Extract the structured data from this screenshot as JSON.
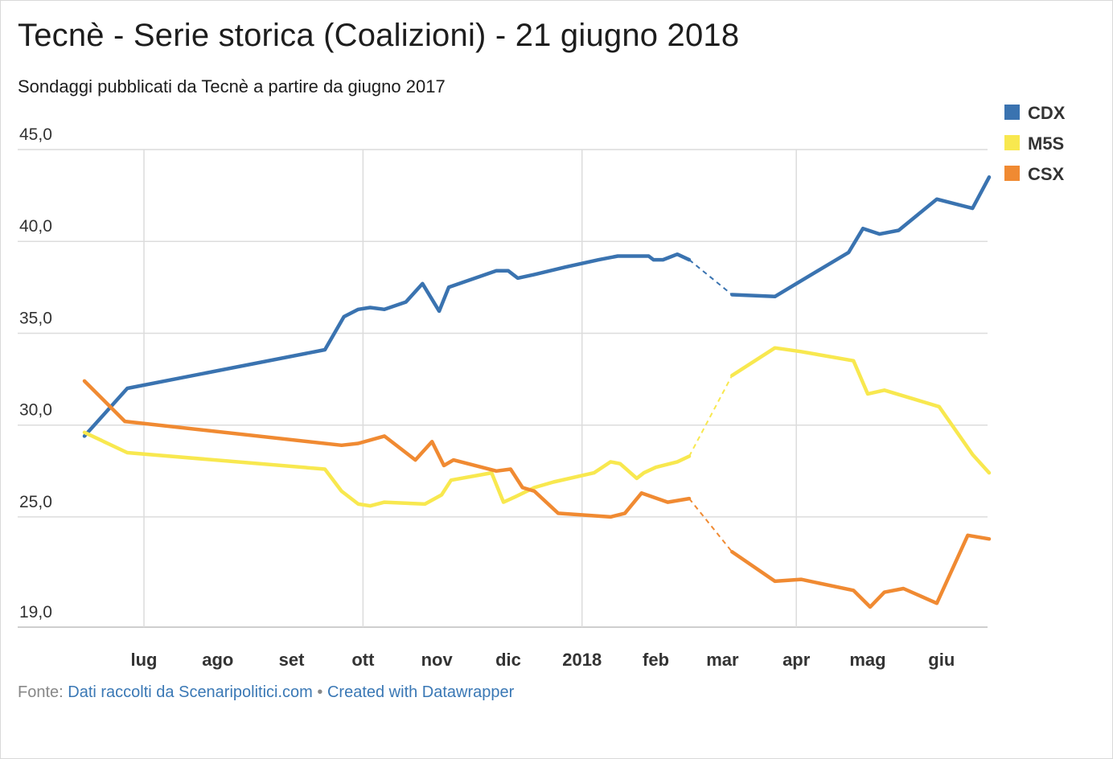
{
  "title": "Tecnè - Serie storica (Coalizioni) - 21 giugno 2018",
  "subtitle": "Sondaggi pubblicati da Tecnè a partire da giugno 2017",
  "footer": {
    "source_label": "Fonte:",
    "source_link": "Dati raccolti da Scenaripolitici.com",
    "separator": "•",
    "credit_link": "Created with Datawrapper"
  },
  "chart_data": {
    "type": "line",
    "title": "Tecnè - Serie storica (Coalizioni) - 21 giugno 2018",
    "subtitle": "Sondaggi pubblicati da Tecnè a partire da giugno 2017",
    "xlabel": "",
    "ylabel": "",
    "xlim": [
      "2017-06-06",
      "2018-06-21"
    ],
    "ylim": [
      19.0,
      45.0
    ],
    "yticks": [
      19.0,
      25.0,
      30.0,
      35.0,
      40.0,
      45.0
    ],
    "ytick_labels": [
      "19,0",
      "25,0",
      "30,0",
      "35,0",
      "40,0",
      "45,0"
    ],
    "xticks": [
      {
        "date": "2017-07-01",
        "label": "lug",
        "grid": true
      },
      {
        "date": "2017-08-01",
        "label": "ago",
        "grid": false
      },
      {
        "date": "2017-09-01",
        "label": "set",
        "grid": false
      },
      {
        "date": "2017-10-01",
        "label": "ott",
        "grid": true
      },
      {
        "date": "2017-11-01",
        "label": "nov",
        "grid": false
      },
      {
        "date": "2017-12-01",
        "label": "dic",
        "grid": false
      },
      {
        "date": "2018-01-01",
        "label": "2018",
        "grid": true
      },
      {
        "date": "2018-02-01",
        "label": "feb",
        "grid": false
      },
      {
        "date": "2018-03-01",
        "label": "mar",
        "grid": false
      },
      {
        "date": "2018-04-01",
        "label": "apr",
        "grid": true
      },
      {
        "date": "2018-05-01",
        "label": "mag",
        "grid": false
      },
      {
        "date": "2018-06-01",
        "label": "giu",
        "grid": false
      }
    ],
    "gap": {
      "from": "2018-02-15",
      "to": "2018-03-05",
      "style": "dashed"
    },
    "legend": {
      "placement": "top-right"
    },
    "grid": true,
    "series": [
      {
        "name": "CDX",
        "color": "#3a73b0",
        "points": [
          [
            "2017-06-06",
            29.4
          ],
          [
            "2017-06-24",
            32.0
          ],
          [
            "2017-09-15",
            34.1
          ],
          [
            "2017-09-23",
            35.9
          ],
          [
            "2017-09-29",
            36.3
          ],
          [
            "2017-10-04",
            36.4
          ],
          [
            "2017-10-10",
            36.3
          ],
          [
            "2017-10-19",
            36.7
          ],
          [
            "2017-10-26",
            37.7
          ],
          [
            "2017-11-02",
            36.2
          ],
          [
            "2017-11-06",
            37.5
          ],
          [
            "2017-11-26",
            38.4
          ],
          [
            "2017-12-01",
            38.4
          ],
          [
            "2017-12-05",
            38.0
          ],
          [
            "2017-12-12",
            38.2
          ],
          [
            "2017-12-25",
            38.6
          ],
          [
            "2018-01-08",
            39.0
          ],
          [
            "2018-01-16",
            39.2
          ],
          [
            "2018-01-29",
            39.2
          ],
          [
            "2018-01-31",
            39.0
          ],
          [
            "2018-02-04",
            39.0
          ],
          [
            "2018-02-08",
            39.2
          ],
          [
            "2018-02-10",
            39.3
          ],
          [
            "2018-02-15",
            39.0
          ],
          [
            "2018-03-05",
            37.1
          ],
          [
            "2018-03-23",
            37.0
          ],
          [
            "2018-04-01",
            37.7
          ],
          [
            "2018-04-23",
            39.4
          ],
          [
            "2018-04-29",
            40.7
          ],
          [
            "2018-05-06",
            40.4
          ],
          [
            "2018-05-14",
            40.6
          ],
          [
            "2018-05-30",
            42.3
          ],
          [
            "2018-06-14",
            41.8
          ],
          [
            "2018-06-21",
            43.5
          ]
        ]
      },
      {
        "name": "M5S",
        "color": "#f8e84f",
        "points": [
          [
            "2017-06-06",
            29.6
          ],
          [
            "2017-06-24",
            28.5
          ],
          [
            "2017-09-15",
            27.6
          ],
          [
            "2017-09-22",
            26.4
          ],
          [
            "2017-09-29",
            25.7
          ],
          [
            "2017-10-04",
            25.6
          ],
          [
            "2017-10-10",
            25.8
          ],
          [
            "2017-10-27",
            25.7
          ],
          [
            "2017-11-03",
            26.2
          ],
          [
            "2017-11-07",
            27.0
          ],
          [
            "2017-11-24",
            27.4
          ],
          [
            "2017-11-29",
            25.8
          ],
          [
            "2017-12-04",
            26.1
          ],
          [
            "2017-12-12",
            26.6
          ],
          [
            "2017-12-20",
            26.9
          ],
          [
            "2018-01-06",
            27.4
          ],
          [
            "2018-01-13",
            28.0
          ],
          [
            "2018-01-17",
            27.9
          ],
          [
            "2018-01-24",
            27.1
          ],
          [
            "2018-01-27",
            27.4
          ],
          [
            "2018-02-01",
            27.7
          ],
          [
            "2018-02-10",
            28.0
          ],
          [
            "2018-02-15",
            28.3
          ],
          [
            "2018-03-05",
            32.7
          ],
          [
            "2018-03-23",
            34.2
          ],
          [
            "2018-04-03",
            34.0
          ],
          [
            "2018-04-25",
            33.5
          ],
          [
            "2018-05-01",
            31.7
          ],
          [
            "2018-05-08",
            31.9
          ],
          [
            "2018-05-31",
            31.0
          ],
          [
            "2018-06-14",
            28.4
          ],
          [
            "2018-06-21",
            27.4
          ]
        ]
      },
      {
        "name": "CSX",
        "color": "#f08a32",
        "points": [
          [
            "2017-06-06",
            32.4
          ],
          [
            "2017-06-23",
            30.2
          ],
          [
            "2017-09-22",
            28.9
          ],
          [
            "2017-09-29",
            29.0
          ],
          [
            "2017-10-10",
            29.4
          ],
          [
            "2017-10-23",
            28.1
          ],
          [
            "2017-10-30",
            29.1
          ],
          [
            "2017-11-04",
            27.8
          ],
          [
            "2017-11-08",
            28.1
          ],
          [
            "2017-11-26",
            27.5
          ],
          [
            "2017-12-02",
            27.6
          ],
          [
            "2017-12-07",
            26.6
          ],
          [
            "2017-12-12",
            26.4
          ],
          [
            "2017-12-22",
            25.2
          ],
          [
            "2018-01-13",
            25.0
          ],
          [
            "2018-01-19",
            25.2
          ],
          [
            "2018-01-26",
            26.3
          ],
          [
            "2018-02-06",
            25.8
          ],
          [
            "2018-02-15",
            26.0
          ],
          [
            "2018-03-05",
            23.1
          ],
          [
            "2018-03-23",
            21.5
          ],
          [
            "2018-04-03",
            21.6
          ],
          [
            "2018-04-25",
            21.0
          ],
          [
            "2018-05-02",
            20.1
          ],
          [
            "2018-05-08",
            20.9
          ],
          [
            "2018-05-16",
            21.1
          ],
          [
            "2018-05-30",
            20.3
          ],
          [
            "2018-06-12",
            24.0
          ],
          [
            "2018-06-21",
            23.8
          ]
        ]
      }
    ]
  }
}
